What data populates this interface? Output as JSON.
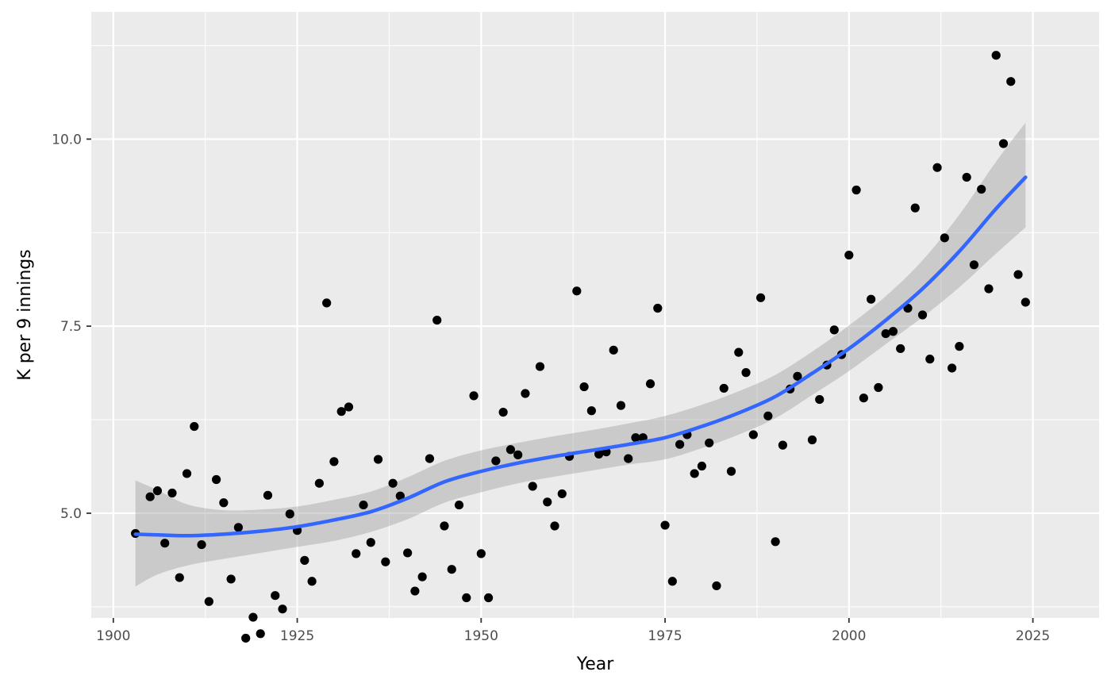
{
  "chart_data": {
    "type": "scatter",
    "title": "",
    "xlabel": "Year",
    "ylabel": "K per 9 innings",
    "xlim": [
      1897,
      2034
    ],
    "ylim": [
      3.6,
      11.7
    ],
    "x_ticks": [
      1900,
      1925,
      1950,
      1975,
      2000,
      2025
    ],
    "x_tick_labels": [
      "1900",
      "1925",
      "1950",
      "1975",
      "2000",
      "2025"
    ],
    "y_ticks": [
      5.0,
      7.5,
      10.0
    ],
    "y_tick_labels": [
      "5.0",
      "7.5",
      "10.0"
    ],
    "grid": true,
    "legend": "none",
    "colors": {
      "panel": "#ebebeb",
      "grid": "#ffffff",
      "point": "#000000",
      "smooth_line": "#3366ff",
      "ribbon": "#999999"
    },
    "points": [
      {
        "x": 1903,
        "y": 4.73
      },
      {
        "x": 1905,
        "y": 5.22
      },
      {
        "x": 1906,
        "y": 5.3
      },
      {
        "x": 1907,
        "y": 4.6
      },
      {
        "x": 1908,
        "y": 5.27
      },
      {
        "x": 1909,
        "y": 4.14
      },
      {
        "x": 1910,
        "y": 5.53
      },
      {
        "x": 1911,
        "y": 6.16
      },
      {
        "x": 1912,
        "y": 4.58
      },
      {
        "x": 1913,
        "y": 3.82
      },
      {
        "x": 1914,
        "y": 5.45
      },
      {
        "x": 1915,
        "y": 5.14
      },
      {
        "x": 1916,
        "y": 4.12
      },
      {
        "x": 1917,
        "y": 4.81
      },
      {
        "x": 1918,
        "y": 3.33
      },
      {
        "x": 1919,
        "y": 3.61
      },
      {
        "x": 1920,
        "y": 3.39
      },
      {
        "x": 1921,
        "y": 5.24
      },
      {
        "x": 1922,
        "y": 3.9
      },
      {
        "x": 1923,
        "y": 3.72
      },
      {
        "x": 1924,
        "y": 4.99
      },
      {
        "x": 1925,
        "y": 4.77
      },
      {
        "x": 1926,
        "y": 4.37
      },
      {
        "x": 1927,
        "y": 4.09
      },
      {
        "x": 1928,
        "y": 5.4
      },
      {
        "x": 1929,
        "y": 7.81
      },
      {
        "x": 1930,
        "y": 5.69
      },
      {
        "x": 1931,
        "y": 6.36
      },
      {
        "x": 1932,
        "y": 6.42
      },
      {
        "x": 1933,
        "y": 4.46
      },
      {
        "x": 1934,
        "y": 5.11
      },
      {
        "x": 1935,
        "y": 4.61
      },
      {
        "x": 1936,
        "y": 5.72
      },
      {
        "x": 1937,
        "y": 4.35
      },
      {
        "x": 1938,
        "y": 5.4
      },
      {
        "x": 1939,
        "y": 5.23
      },
      {
        "x": 1940,
        "y": 4.47
      },
      {
        "x": 1941,
        "y": 3.96
      },
      {
        "x": 1942,
        "y": 4.15
      },
      {
        "x": 1943,
        "y": 5.73
      },
      {
        "x": 1944,
        "y": 7.58
      },
      {
        "x": 1945,
        "y": 4.83
      },
      {
        "x": 1946,
        "y": 4.25
      },
      {
        "x": 1947,
        "y": 5.11
      },
      {
        "x": 1948,
        "y": 3.87
      },
      {
        "x": 1949,
        "y": 6.57
      },
      {
        "x": 1950,
        "y": 4.46
      },
      {
        "x": 1951,
        "y": 3.87
      },
      {
        "x": 1952,
        "y": 5.7
      },
      {
        "x": 1953,
        "y": 6.35
      },
      {
        "x": 1954,
        "y": 5.85
      },
      {
        "x": 1955,
        "y": 5.78
      },
      {
        "x": 1956,
        "y": 6.6
      },
      {
        "x": 1957,
        "y": 5.36
      },
      {
        "x": 1958,
        "y": 6.96
      },
      {
        "x": 1959,
        "y": 5.15
      },
      {
        "x": 1960,
        "y": 4.83
      },
      {
        "x": 1961,
        "y": 5.26
      },
      {
        "x": 1962,
        "y": 5.76
      },
      {
        "x": 1963,
        "y": 7.97
      },
      {
        "x": 1964,
        "y": 6.69
      },
      {
        "x": 1965,
        "y": 6.37
      },
      {
        "x": 1966,
        "y": 5.79
      },
      {
        "x": 1967,
        "y": 5.82
      },
      {
        "x": 1968,
        "y": 7.18
      },
      {
        "x": 1969,
        "y": 6.44
      },
      {
        "x": 1970,
        "y": 5.73
      },
      {
        "x": 1971,
        "y": 6.01
      },
      {
        "x": 1972,
        "y": 6.01
      },
      {
        "x": 1973,
        "y": 6.73
      },
      {
        "x": 1974,
        "y": 7.74
      },
      {
        "x": 1975,
        "y": 4.84
      },
      {
        "x": 1976,
        "y": 4.09
      },
      {
        "x": 1977,
        "y": 5.92
      },
      {
        "x": 1978,
        "y": 6.05
      },
      {
        "x": 1979,
        "y": 5.53
      },
      {
        "x": 1980,
        "y": 5.63
      },
      {
        "x": 1981,
        "y": 5.94
      },
      {
        "x": 1982,
        "y": 4.03
      },
      {
        "x": 1983,
        "y": 6.67
      },
      {
        "x": 1984,
        "y": 5.56
      },
      {
        "x": 1985,
        "y": 7.15
      },
      {
        "x": 1986,
        "y": 6.88
      },
      {
        "x": 1987,
        "y": 6.05
      },
      {
        "x": 1988,
        "y": 7.88
      },
      {
        "x": 1989,
        "y": 6.3
      },
      {
        "x": 1990,
        "y": 4.62
      },
      {
        "x": 1991,
        "y": 5.91
      },
      {
        "x": 1992,
        "y": 6.66
      },
      {
        "x": 1993,
        "y": 6.83
      },
      {
        "x": 1995,
        "y": 5.98
      },
      {
        "x": 1996,
        "y": 6.52
      },
      {
        "x": 1997,
        "y": 6.98
      },
      {
        "x": 1998,
        "y": 7.45
      },
      {
        "x": 1999,
        "y": 7.12
      },
      {
        "x": 2000,
        "y": 8.45
      },
      {
        "x": 2001,
        "y": 9.32
      },
      {
        "x": 2002,
        "y": 6.54
      },
      {
        "x": 2003,
        "y": 7.86
      },
      {
        "x": 2004,
        "y": 6.68
      },
      {
        "x": 2005,
        "y": 7.4
      },
      {
        "x": 2006,
        "y": 7.43
      },
      {
        "x": 2007,
        "y": 7.2
      },
      {
        "x": 2008,
        "y": 7.74
      },
      {
        "x": 2009,
        "y": 9.08
      },
      {
        "x": 2010,
        "y": 7.65
      },
      {
        "x": 2011,
        "y": 7.06
      },
      {
        "x": 2012,
        "y": 9.62
      },
      {
        "x": 2013,
        "y": 8.68
      },
      {
        "x": 2014,
        "y": 6.94
      },
      {
        "x": 2015,
        "y": 7.23
      },
      {
        "x": 2016,
        "y": 9.49
      },
      {
        "x": 2017,
        "y": 8.32
      },
      {
        "x": 2018,
        "y": 9.33
      },
      {
        "x": 2019,
        "y": 8.0
      },
      {
        "x": 2020,
        "y": 11.12
      },
      {
        "x": 2021,
        "y": 9.94
      },
      {
        "x": 2022,
        "y": 10.77
      },
      {
        "x": 2023,
        "y": 8.19
      },
      {
        "x": 2024,
        "y": 7.82
      }
    ],
    "smooth": [
      {
        "x": 1903,
        "y": 4.72,
        "lo": 4.02,
        "hi": 5.44
      },
      {
        "x": 1906,
        "y": 4.71,
        "lo": 4.18,
        "hi": 5.31
      },
      {
        "x": 1910,
        "y": 4.7,
        "lo": 4.3,
        "hi": 5.12
      },
      {
        "x": 1915,
        "y": 4.72,
        "lo": 4.39,
        "hi": 5.04
      },
      {
        "x": 1920,
        "y": 4.76,
        "lo": 4.47,
        "hi": 5.05
      },
      {
        "x": 1925,
        "y": 4.82,
        "lo": 4.55,
        "hi": 5.09
      },
      {
        "x": 1930,
        "y": 4.91,
        "lo": 4.63,
        "hi": 5.18
      },
      {
        "x": 1935,
        "y": 5.02,
        "lo": 4.75,
        "hi": 5.29
      },
      {
        "x": 1940,
        "y": 5.2,
        "lo": 4.92,
        "hi": 5.48
      },
      {
        "x": 1945,
        "y": 5.42,
        "lo": 5.14,
        "hi": 5.7
      },
      {
        "x": 1950,
        "y": 5.56,
        "lo": 5.28,
        "hi": 5.84
      },
      {
        "x": 1955,
        "y": 5.67,
        "lo": 5.4,
        "hi": 5.94
      },
      {
        "x": 1960,
        "y": 5.76,
        "lo": 5.49,
        "hi": 6.03
      },
      {
        "x": 1965,
        "y": 5.84,
        "lo": 5.57,
        "hi": 6.11
      },
      {
        "x": 1970,
        "y": 5.92,
        "lo": 5.65,
        "hi": 6.2
      },
      {
        "x": 1975,
        "y": 6.01,
        "lo": 5.72,
        "hi": 6.3
      },
      {
        "x": 1980,
        "y": 6.16,
        "lo": 5.87,
        "hi": 6.45
      },
      {
        "x": 1985,
        "y": 6.34,
        "lo": 6.05,
        "hi": 6.63
      },
      {
        "x": 1990,
        "y": 6.56,
        "lo": 6.27,
        "hi": 6.85
      },
      {
        "x": 1995,
        "y": 6.87,
        "lo": 6.58,
        "hi": 7.16
      },
      {
        "x": 2000,
        "y": 7.2,
        "lo": 6.9,
        "hi": 7.51
      },
      {
        "x": 2005,
        "y": 7.58,
        "lo": 7.26,
        "hi": 7.9
      },
      {
        "x": 2010,
        "y": 8.0,
        "lo": 7.62,
        "hi": 8.38
      },
      {
        "x": 2015,
        "y": 8.5,
        "lo": 8.02,
        "hi": 8.99
      },
      {
        "x": 2020,
        "y": 9.07,
        "lo": 8.47,
        "hi": 9.7
      },
      {
        "x": 2024,
        "y": 9.49,
        "lo": 8.82,
        "hi": 10.22
      }
    ]
  }
}
